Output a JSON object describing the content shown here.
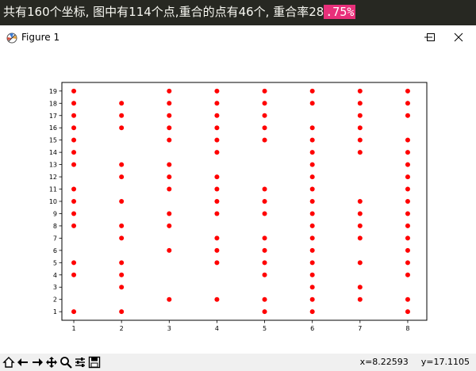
{
  "banner": {
    "text": "共有160个坐标, 图中有114个点,重合的点有46个, 重合率28",
    "highlight": ".75%"
  },
  "window": {
    "title": "Figure 1",
    "app_icon": "matplotlib-logo-icon",
    "controls": [
      "minimize-icon",
      "maximize-icon",
      "close-icon"
    ]
  },
  "toolbar": {
    "tools": [
      "home-icon",
      "back-icon",
      "forward-icon",
      "pan-icon",
      "zoom-icon",
      "configure-subplots-icon",
      "save-icon"
    ],
    "x_readout": "x=8.22593",
    "y_readout": "y=17.1105"
  },
  "colors": {
    "marker": "#ff0000",
    "banner_bg": "#272822",
    "banner_highlight": "#e8307a"
  },
  "chart_data": {
    "type": "scatter",
    "title": "",
    "xlabel": "",
    "ylabel": "",
    "xlim": [
      0.75,
      8.4
    ],
    "ylim": [
      0.3,
      19.7
    ],
    "xticks": [
      1,
      2,
      3,
      4,
      5,
      6,
      7,
      8
    ],
    "yticks": [
      1,
      2,
      3,
      4,
      5,
      6,
      7,
      8,
      9,
      10,
      11,
      12,
      13,
      14,
      15,
      16,
      17,
      18,
      19
    ],
    "grid": false,
    "points": [
      [
        1,
        1
      ],
      [
        1,
        4
      ],
      [
        1,
        5
      ],
      [
        1,
        8
      ],
      [
        1,
        9
      ],
      [
        1,
        10
      ],
      [
        1,
        11
      ],
      [
        1,
        13
      ],
      [
        1,
        14
      ],
      [
        1,
        15
      ],
      [
        1,
        16
      ],
      [
        1,
        17
      ],
      [
        1,
        18
      ],
      [
        1,
        19
      ],
      [
        2,
        1
      ],
      [
        2,
        3
      ],
      [
        2,
        4
      ],
      [
        2,
        5
      ],
      [
        2,
        7
      ],
      [
        2,
        8
      ],
      [
        2,
        10
      ],
      [
        2,
        12
      ],
      [
        2,
        13
      ],
      [
        2,
        16
      ],
      [
        2,
        17
      ],
      [
        2,
        18
      ],
      [
        3,
        2
      ],
      [
        3,
        6
      ],
      [
        3,
        8
      ],
      [
        3,
        9
      ],
      [
        3,
        11
      ],
      [
        3,
        12
      ],
      [
        3,
        13
      ],
      [
        3,
        15
      ],
      [
        3,
        16
      ],
      [
        3,
        17
      ],
      [
        3,
        18
      ],
      [
        3,
        19
      ],
      [
        4,
        2
      ],
      [
        4,
        5
      ],
      [
        4,
        6
      ],
      [
        4,
        7
      ],
      [
        4,
        9
      ],
      [
        4,
        10
      ],
      [
        4,
        11
      ],
      [
        4,
        12
      ],
      [
        4,
        14
      ],
      [
        4,
        15
      ],
      [
        4,
        16
      ],
      [
        4,
        17
      ],
      [
        4,
        18
      ],
      [
        4,
        19
      ],
      [
        5,
        1
      ],
      [
        5,
        2
      ],
      [
        5,
        4
      ],
      [
        5,
        5
      ],
      [
        5,
        6
      ],
      [
        5,
        7
      ],
      [
        5,
        9
      ],
      [
        5,
        10
      ],
      [
        5,
        11
      ],
      [
        5,
        15
      ],
      [
        5,
        16
      ],
      [
        5,
        17
      ],
      [
        5,
        18
      ],
      [
        5,
        19
      ],
      [
        6,
        1
      ],
      [
        6,
        2
      ],
      [
        6,
        3
      ],
      [
        6,
        4
      ],
      [
        6,
        5
      ],
      [
        6,
        6
      ],
      [
        6,
        7
      ],
      [
        6,
        8
      ],
      [
        6,
        9
      ],
      [
        6,
        10
      ],
      [
        6,
        11
      ],
      [
        6,
        12
      ],
      [
        6,
        13
      ],
      [
        6,
        14
      ],
      [
        6,
        15
      ],
      [
        6,
        16
      ],
      [
        6,
        18
      ],
      [
        6,
        19
      ],
      [
        7,
        2
      ],
      [
        7,
        3
      ],
      [
        7,
        5
      ],
      [
        7,
        7
      ],
      [
        7,
        8
      ],
      [
        7,
        9
      ],
      [
        7,
        10
      ],
      [
        7,
        14
      ],
      [
        7,
        15
      ],
      [
        7,
        16
      ],
      [
        7,
        17
      ],
      [
        7,
        18
      ],
      [
        7,
        19
      ],
      [
        8,
        1
      ],
      [
        8,
        2
      ],
      [
        8,
        4
      ],
      [
        8,
        5
      ],
      [
        8,
        6
      ],
      [
        8,
        7
      ],
      [
        8,
        8
      ],
      [
        8,
        9
      ],
      [
        8,
        10
      ],
      [
        8,
        11
      ],
      [
        8,
        12
      ],
      [
        8,
        13
      ],
      [
        8,
        14
      ],
      [
        8,
        15
      ],
      [
        8,
        17
      ],
      [
        8,
        18
      ],
      [
        8,
        19
      ]
    ]
  }
}
